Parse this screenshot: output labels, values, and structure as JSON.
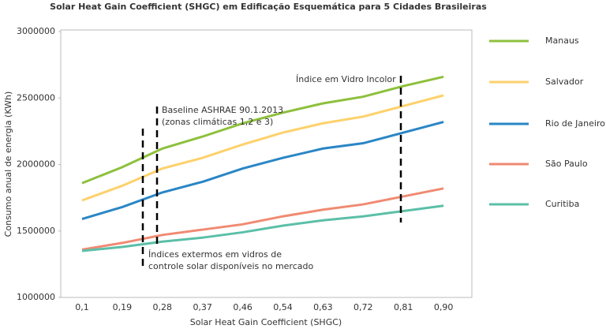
{
  "chart_data": {
    "type": "line",
    "title": "Solar Heat Gain Coefficient (SHGC) em Edificação Esquemática para 5 Cidades Brasileiras",
    "x_label": "Solar Heat Gain Coefficient (SHGC)",
    "y_label": "Consumo anual de energia (KWh)",
    "categories": [
      "0,1",
      "0,19",
      "0,28",
      "0,37",
      "0,46",
      "0,54",
      "0,63",
      "0,72",
      "0,81",
      "0,90"
    ],
    "ylim": [
      1000000,
      3000000
    ],
    "yticks": [
      1000000,
      1500000,
      2000000,
      2500000,
      3000000
    ],
    "legend": "right",
    "annotations": [
      "Baseline ASHRAE 90.1.2013",
      "(zonas climáticas 1,2 e 3)",
      "Índice em Vidro Incolor",
      "Índices extermos em vidros de",
      "controle solar disponíveis no mercado"
    ],
    "series": [
      {
        "name": "Manaus",
        "color": "#8dc03c",
        "values": [
          1860000,
          1980000,
          2120000,
          2210000,
          2310000,
          2390000,
          2460000,
          2510000,
          2590000,
          2660000
        ]
      },
      {
        "name": "Salvador",
        "color": "#fdd16b",
        "values": [
          1730000,
          1840000,
          1970000,
          2050000,
          2150000,
          2240000,
          2310000,
          2360000,
          2440000,
          2520000
        ]
      },
      {
        "name": "Rio de Janeiro",
        "color": "#2a86c5",
        "values": [
          1590000,
          1680000,
          1790000,
          1870000,
          1970000,
          2050000,
          2120000,
          2160000,
          2240000,
          2320000
        ]
      },
      {
        "name": "São Paulo",
        "color": "#f08a72",
        "values": [
          1360000,
          1410000,
          1470000,
          1510000,
          1550000,
          1610000,
          1660000,
          1700000,
          1760000,
          1820000
        ]
      },
      {
        "name": "Curitiba",
        "color": "#5bbfa7",
        "values": [
          1350000,
          1380000,
          1420000,
          1450000,
          1490000,
          1540000,
          1580000,
          1610000,
          1650000,
          1690000
        ]
      }
    ]
  }
}
